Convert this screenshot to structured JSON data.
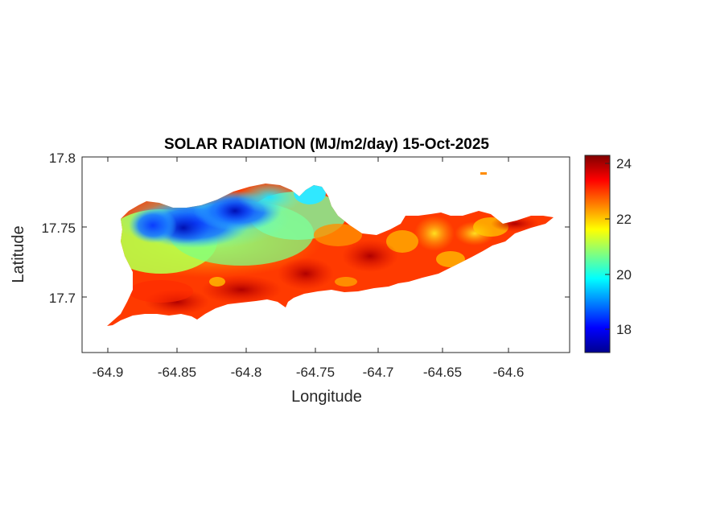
{
  "title": "SOLAR RADIATION (MJ/m2/day) 15-Oct-2025",
  "xlabel": "Longitude",
  "ylabel": "Latitude",
  "chart_data": {
    "type": "heatmap",
    "title": "SOLAR RADIATION (MJ/m2/day) 15-Oct-2025",
    "xlabel": "Longitude",
    "ylabel": "Latitude",
    "xlim": [
      -64.92,
      -64.55
    ],
    "ylim": [
      17.66,
      17.8
    ],
    "x_ticks": [
      "-64.9",
      "-64.85",
      "-64.8",
      "-64.75",
      "-64.7",
      "-64.65",
      "-64.6"
    ],
    "y_ticks": [
      "17.8",
      "17.75",
      "17.7"
    ],
    "colorbar": {
      "ticks": [
        "24",
        "22",
        "20",
        "18"
      ],
      "range": [
        17.1,
        24.3
      ],
      "colormap": "jet"
    },
    "grid": false
  }
}
